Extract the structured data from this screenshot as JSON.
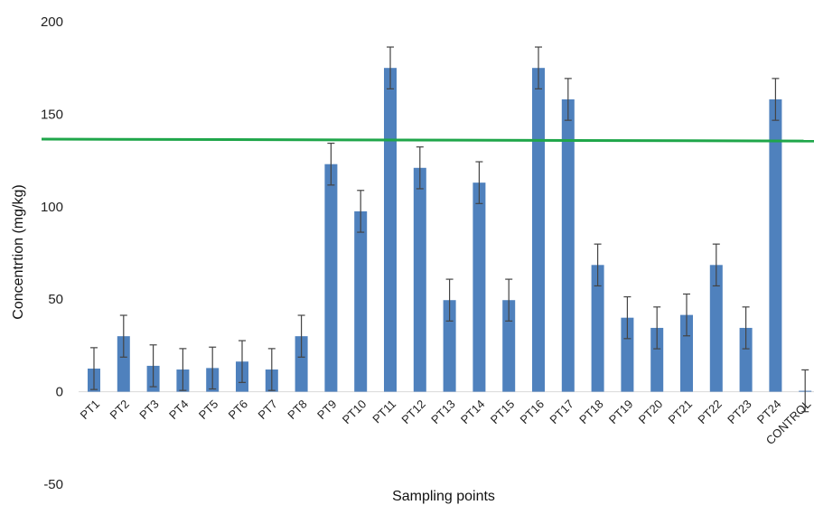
{
  "chart_data": {
    "type": "bar",
    "xlabel": "Sampling points",
    "ylabel": "Concentrtion (mg/kg)",
    "ylim": [
      -50,
      200
    ],
    "yticks": [
      -50,
      0,
      50,
      100,
      150,
      200
    ],
    "grid": false,
    "categories": [
      "PT1",
      "PT2",
      "PT3",
      "PT4",
      "PT5",
      "PT6",
      "PT7",
      "PT8",
      "PT9",
      "PT10",
      "PT11",
      "PT12",
      "PT13",
      "PT14",
      "PT15",
      "PT16",
      "PT17",
      "PT18",
      "PT19",
      "PT20",
      "PT21",
      "PT22",
      "PT23",
      "PT24",
      "CONTROL"
    ],
    "values": [
      12.5,
      30,
      14,
      12,
      12.8,
      16.3,
      12,
      30,
      123,
      97.5,
      175,
      121,
      49.5,
      113,
      49.5,
      175,
      158,
      68.5,
      40,
      34.5,
      41.5,
      68.5,
      34.5,
      158,
      0.5
    ],
    "error": [
      11.3,
      11.3,
      11.3,
      11.3,
      11.3,
      11.3,
      11.3,
      11.3,
      11.3,
      11.3,
      11.3,
      11.3,
      11.3,
      11.3,
      11.3,
      11.3,
      11.3,
      11.3,
      11.3,
      11.3,
      11.3,
      11.3,
      11.3,
      11.3,
      11.3
    ],
    "colors": {
      "bar": "#4f81bd",
      "error_bar": "#444444",
      "reference_line": "#1fa64a"
    },
    "reference_line": {
      "y_start": 136.5,
      "y_end": 135.5
    }
  }
}
